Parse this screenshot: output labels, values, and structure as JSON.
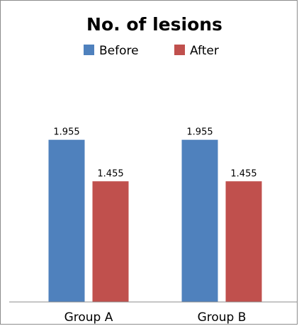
{
  "chart_data": {
    "type": "bar",
    "title": "No. of lesions",
    "categories": [
      "Group A",
      "Group B"
    ],
    "series": [
      {
        "name": "Before",
        "values": [
          1.955,
          1.955
        ],
        "labels": [
          "1.955",
          "1.955"
        ],
        "color": "#4F81BD"
      },
      {
        "name": "After",
        "values": [
          1.455,
          1.455
        ],
        "labels": [
          "1.455",
          "1.455"
        ],
        "color": "#C0504D"
      }
    ],
    "ylim": [
      0,
      3
    ],
    "grid": false,
    "legend_position": "top"
  }
}
